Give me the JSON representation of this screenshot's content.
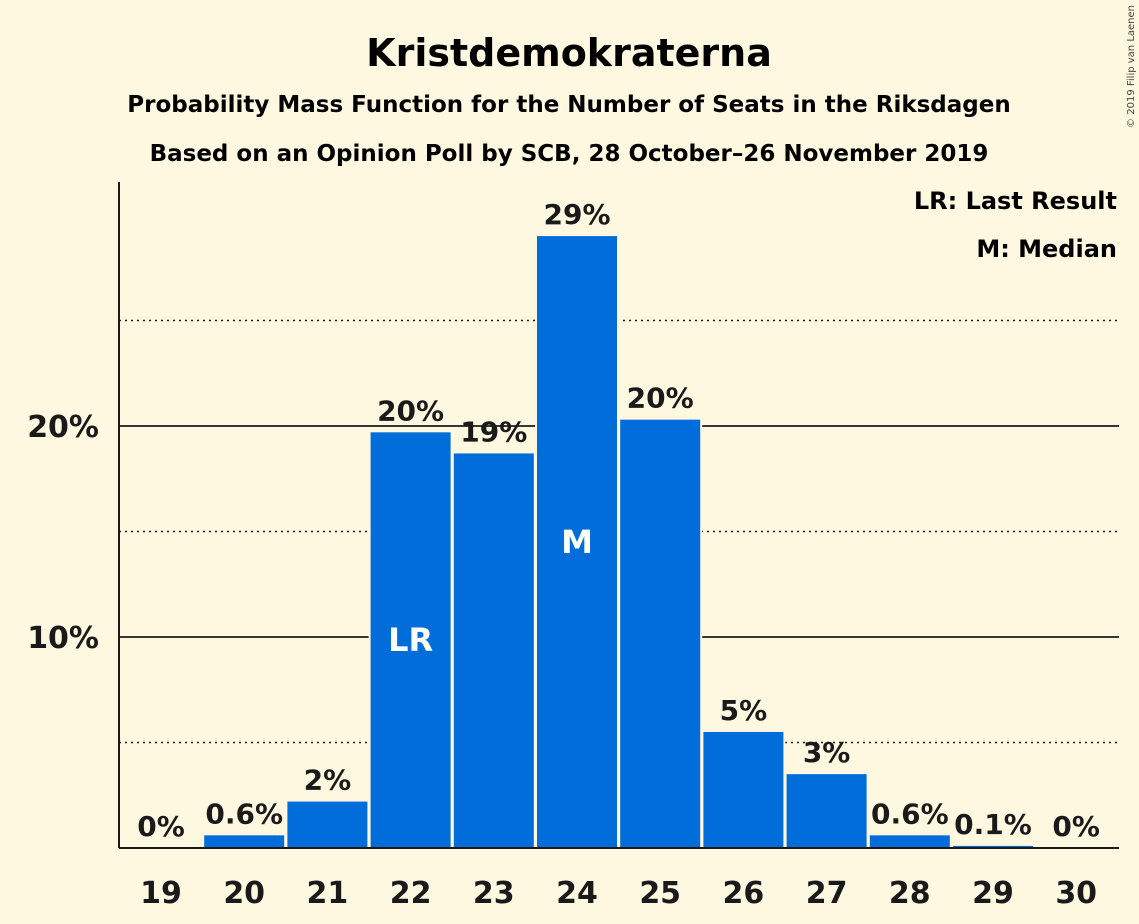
{
  "chart_data": {
    "type": "bar",
    "title": "Kristdemokraterna",
    "subtitle_1": "Probability Mass Function for the Number of Seats in the Riksdagen",
    "subtitle_2": "Based on an Opinion Poll by SCB, 28 October–26 November 2019",
    "legend": [
      "LR: Last Result",
      "M: Median"
    ],
    "copyright": "© 2019 Filip van Laenen",
    "categories": [
      "19",
      "20",
      "21",
      "22",
      "23",
      "24",
      "25",
      "26",
      "27",
      "28",
      "29",
      "30"
    ],
    "values": [
      0,
      0.6,
      2.2,
      19.7,
      18.7,
      29.0,
      20.3,
      5.5,
      3.5,
      0.6,
      0.1,
      0
    ],
    "value_labels": [
      "0%",
      "0.6%",
      "2%",
      "20%",
      "19%",
      "29%",
      "20%",
      "5%",
      "3%",
      "0.6%",
      "0.1%",
      "0%"
    ],
    "annotations": [
      {
        "category": "22",
        "text": "LR"
      },
      {
        "category": "24",
        "text": "M"
      }
    ],
    "yticks": [
      {
        "value": 10,
        "label": "10%"
      },
      {
        "value": 20,
        "label": "20%"
      }
    ],
    "minor_gridlines": [
      5,
      15,
      25
    ],
    "ylim": [
      0,
      31.5
    ],
    "grid": true,
    "legend_position": "top-right",
    "colors": {
      "bar": "#006ddb",
      "background": "#fff8e1",
      "text": "#1a1a1a"
    }
  }
}
